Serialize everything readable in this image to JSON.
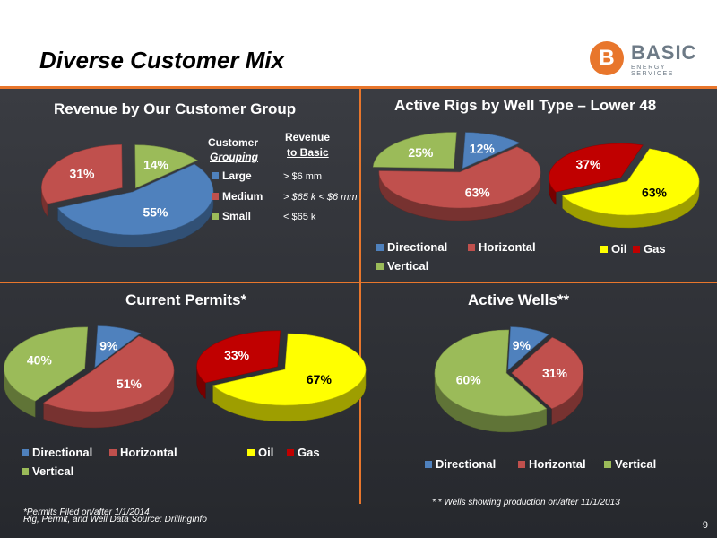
{
  "slide": {
    "title": "Diverse Customer Mix",
    "page_number": "9",
    "footnote_left_1": "*Permits Filed on/after 1/1/2014",
    "footnote_left_2": "Rig, Permit, and Well Data Source: DrillingInfo",
    "footnote_right": "* * Wells showing production on/after 11/1/2013"
  },
  "logo": {
    "letter": "B",
    "name": "BASIC",
    "tagline": "ENERGY SERVICES"
  },
  "colors": {
    "blue": "#4f81bd",
    "red": "#c0504d",
    "green": "#9bbb59",
    "yellow": "#ffff00",
    "darkred": "#c00000",
    "accent": "#e8762c"
  },
  "panels": {
    "revenue": {
      "title": "Revenue by Our Customer Group",
      "col1_header_1": "Customer",
      "col1_header_2": "Grouping",
      "col2_header_1": "Revenue",
      "col2_header_2": "to Basic",
      "rows": [
        {
          "group": "Large",
          "revenue": "> $6 mm"
        },
        {
          "group": "Medium",
          "revenue": "> $65 k < $6 mm"
        },
        {
          "group": "Small",
          "revenue": "< $65 k"
        }
      ]
    },
    "rigs": {
      "title": "Active Rigs by Well Type – Lower 48"
    },
    "permits": {
      "title": "Current Permits*"
    },
    "wells": {
      "title": "Active Wells**"
    }
  },
  "legend_labels": {
    "directional": "Directional",
    "horizontal": "Horizontal",
    "vertical": "Vertical",
    "oil": "Oil",
    "gas": "Gas"
  },
  "chart_data": [
    {
      "type": "pie",
      "title": "Revenue by Our Customer Group",
      "categories": [
        "Large",
        "Medium",
        "Small"
      ],
      "values": [
        55,
        31,
        14
      ],
      "labels": [
        "55%",
        "31%",
        "14%"
      ]
    },
    {
      "type": "pie",
      "title": "Active Rigs by Well Type – Lower 48",
      "categories": [
        "Directional",
        "Horizontal",
        "Vertical"
      ],
      "values": [
        12,
        63,
        25
      ],
      "labels": [
        "12%",
        "63%",
        "25%"
      ]
    },
    {
      "type": "pie",
      "title": "Active Rigs by Well Type – Lower 48",
      "categories": [
        "Oil",
        "Gas"
      ],
      "values": [
        63,
        37
      ],
      "labels": [
        "63%",
        "37%"
      ]
    },
    {
      "type": "pie",
      "title": "Current Permits*",
      "categories": [
        "Directional",
        "Horizontal",
        "Vertical"
      ],
      "values": [
        9,
        51,
        40
      ],
      "labels": [
        "9%",
        "51%",
        "40%"
      ]
    },
    {
      "type": "pie",
      "title": "Current Permits*",
      "categories": [
        "Oil",
        "Gas"
      ],
      "values": [
        67,
        33
      ],
      "labels": [
        "67%",
        "33%"
      ]
    },
    {
      "type": "pie",
      "title": "Active Wells**",
      "categories": [
        "Directional",
        "Horizontal",
        "Vertical"
      ],
      "values": [
        9,
        31,
        60
      ],
      "labels": [
        "9%",
        "31%",
        "60%"
      ]
    }
  ]
}
